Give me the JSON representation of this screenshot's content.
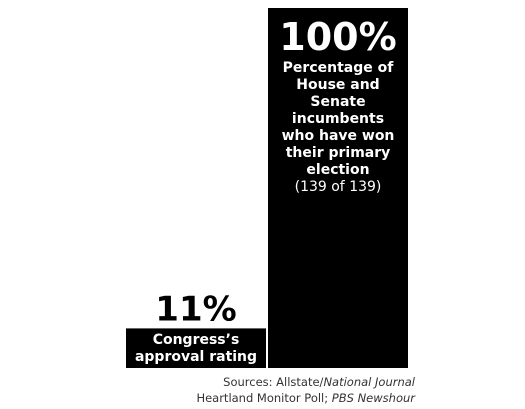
{
  "chart_data": {
    "type": "bar",
    "categories": [
      "Congress’s approval rating",
      "Percentage of House and Senate incumbents who have won their primary election"
    ],
    "values": [
      11,
      100
    ],
    "value_labels": [
      "11%",
      "100%"
    ],
    "annotation": "(139 of 139)",
    "color": "#000000",
    "ylim": [
      0,
      100
    ],
    "sources": [
      [
        "Sources: Allstate/",
        "National Journal"
      ],
      [
        "Heartland Monitor Poll; ",
        "PBS Newshour"
      ]
    ]
  }
}
